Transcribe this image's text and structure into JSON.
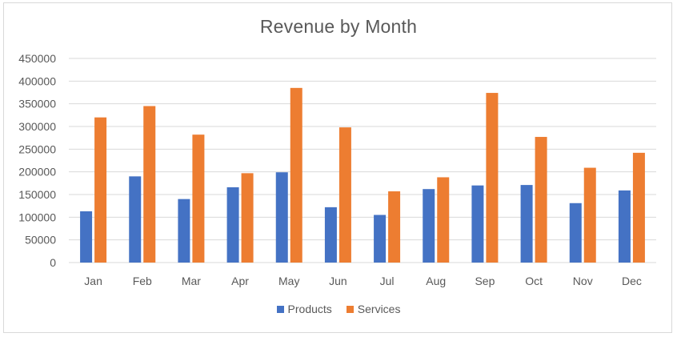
{
  "chart_data": {
    "type": "bar",
    "title": "Revenue by Month",
    "xlabel": "",
    "ylabel": "",
    "categories": [
      "Jan",
      "Feb",
      "Mar",
      "Apr",
      "May",
      "Jun",
      "Jul",
      "Aug",
      "Sep",
      "Oct",
      "Nov",
      "Dec"
    ],
    "series": [
      {
        "name": "Products",
        "color": "#4472c4",
        "values": [
          113000,
          190000,
          140000,
          166000,
          199000,
          122000,
          105000,
          162000,
          170000,
          171000,
          131000,
          159000
        ]
      },
      {
        "name": "Services",
        "color": "#ed7d31",
        "values": [
          320000,
          345000,
          282000,
          197000,
          385000,
          298000,
          157000,
          188000,
          374000,
          277000,
          209000,
          242000
        ]
      }
    ],
    "ylim": [
      0,
      450000
    ],
    "yticks": [
      "0",
      "50000",
      "100000",
      "150000",
      "200000",
      "250000",
      "300000",
      "350000",
      "400000",
      "450000"
    ],
    "grid": true,
    "legend_position": "bottom"
  }
}
